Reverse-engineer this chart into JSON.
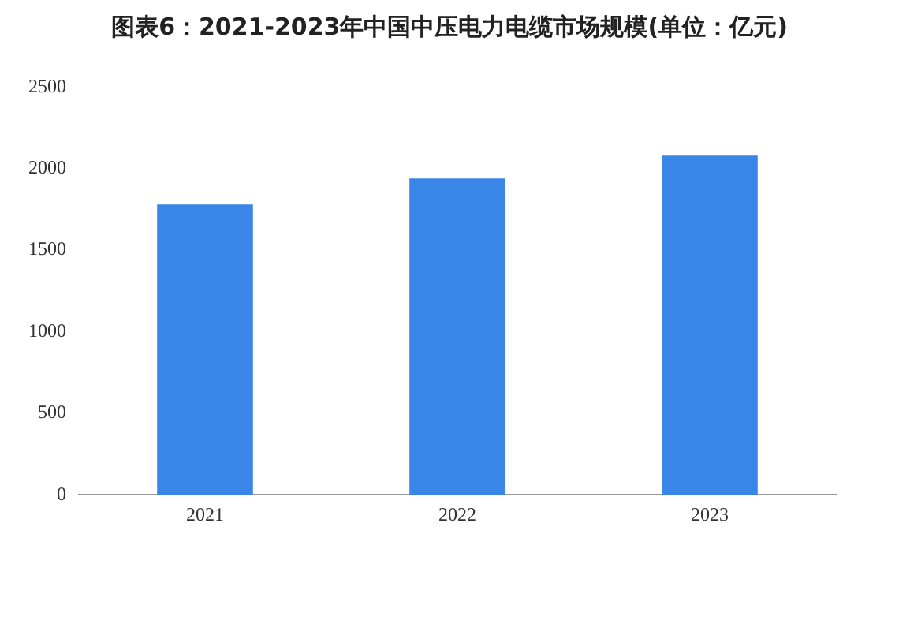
{
  "chart_data": {
    "type": "bar",
    "title": "图表6：2021-2023年中国中压电力电缆市场规模(单位：亿元)",
    "categories": [
      "2021",
      "2022",
      "2023"
    ],
    "values": [
      1780,
      1940,
      2080
    ],
    "color": "#3a86e8",
    "ylim": [
      0,
      2500
    ],
    "yticks": [
      0,
      500,
      1000,
      1500,
      2000,
      2500
    ],
    "grid": false
  }
}
